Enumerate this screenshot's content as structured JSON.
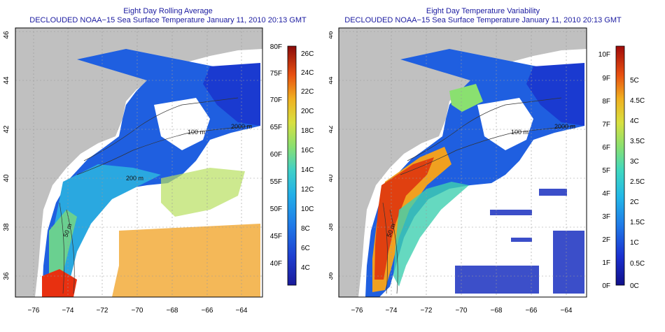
{
  "maps": [
    {
      "title_line1": "Eight Day Rolling Average",
      "title_line2": "DECLOUDED NOAA−15 Sea Surface Temperature January 11, 2010 20:13 GMT",
      "lon_ticks": [
        "−76",
        "−74",
        "−72",
        "−70",
        "−68",
        "−66",
        "−64"
      ],
      "lat_ticks": [
        "36",
        "38",
        "40",
        "42",
        "44",
        "46"
      ],
      "contour_labels": [
        "100 m",
        "2000 m",
        "200 m",
        "50 m",
        "100 m",
        "50 m"
      ],
      "colorbar": {
        "left_ticks": [
          "80F",
          "75F",
          "70F",
          "65F",
          "60F",
          "55F",
          "50F",
          "45F",
          "40F"
        ],
        "right_ticks": [
          "26C",
          "24C",
          "22C",
          "20C",
          "18C",
          "16C",
          "14C",
          "12C",
          "10C",
          "8C",
          "6C",
          "4C"
        ],
        "colors": [
          "#1a1a9a",
          "#1f3fd0",
          "#1f6fe8",
          "#22a8e8",
          "#3fd0c8",
          "#7fe07a",
          "#c8e040",
          "#f0c020",
          "#f08a10",
          "#e84010",
          "#c01010",
          "#8a0a0a"
        ]
      }
    },
    {
      "title_line1": "Eight Day Temperature Variability",
      "title_line2": "DECLOUDED NOAA−15 Sea Surface Temperature January 11, 2010 20:13 GMT",
      "lon_ticks": [
        "−76",
        "−74",
        "−72",
        "−70",
        "−68",
        "−66",
        "−64"
      ],
      "lat_ticks": [
        "36",
        "38",
        "40",
        "42",
        "44",
        "46"
      ],
      "contour_labels": [
        "100 m",
        "2000 m",
        "200 m",
        "50 m",
        "100 m",
        "50 m"
      ],
      "colorbar": {
        "left_ticks": [
          "10F",
          "9F",
          "8F",
          "7F",
          "6F",
          "5F",
          "4F",
          "3F",
          "2F",
          "1F",
          "0F"
        ],
        "right_ticks": [
          "5C",
          "4.5C",
          "4C",
          "3.5C",
          "3C",
          "2.5C",
          "2C",
          "1.5C",
          "1C",
          "0.5C",
          "0C"
        ],
        "colors": [
          "#10108a",
          "#1a30d0",
          "#1f6fe8",
          "#22b0e8",
          "#3fd8c0",
          "#8ae070",
          "#d0e040",
          "#f0b820",
          "#f07a10",
          "#d83010",
          "#a00a0a"
        ]
      }
    }
  ]
}
